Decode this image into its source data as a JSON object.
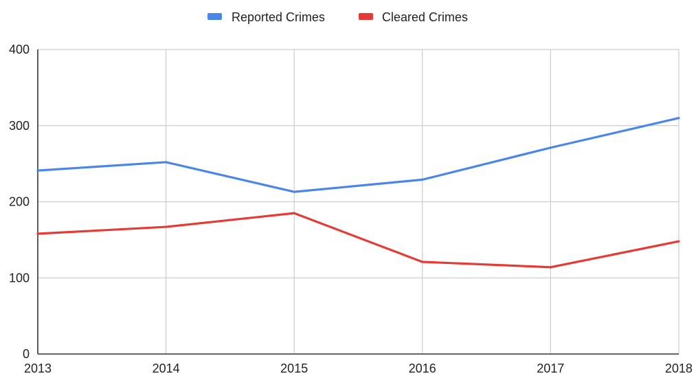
{
  "chart_data": {
    "type": "line",
    "title": "",
    "xlabel": "",
    "ylabel": "",
    "categories": [
      "2013",
      "2014",
      "2015",
      "2016",
      "2017",
      "2018"
    ],
    "ylim": [
      0,
      400
    ],
    "yticks": [
      "0",
      "100",
      "200",
      "300",
      "400"
    ],
    "grid": true,
    "legend_position": "top-center",
    "series": [
      {
        "name": "Reported Crimes",
        "color": "#4a86e8",
        "values": [
          241,
          252,
          213,
          229,
          271,
          310
        ]
      },
      {
        "name": "Cleared Crimes",
        "color": "#e53b35",
        "values": [
          158,
          167,
          185,
          121,
          114,
          148
        ]
      }
    ]
  }
}
